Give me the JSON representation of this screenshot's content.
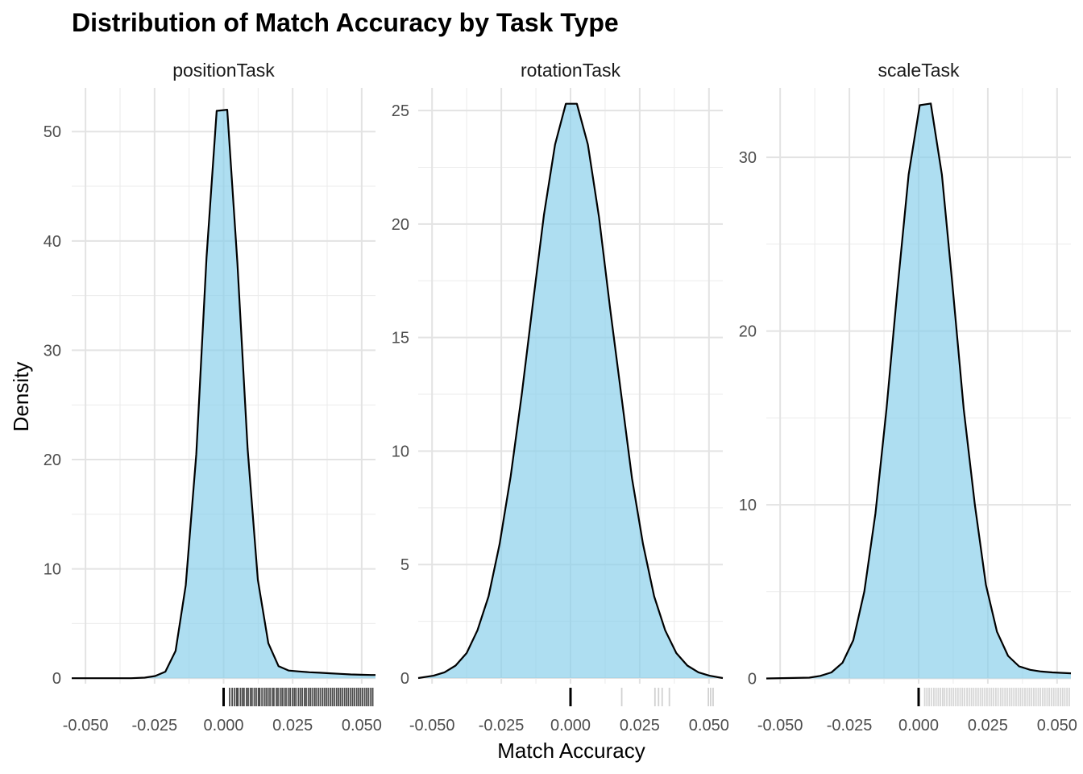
{
  "chart_data": {
    "type": "area",
    "title": "Distribution of Match Accuracy by Task Type",
    "xlabel": "Match Accuracy",
    "ylabel": "Density",
    "grid": true,
    "legend": "none",
    "fill_color": "#87ceeb",
    "line_color": "#000000",
    "x_ticks": [
      -0.05,
      -0.025,
      0.0,
      0.025,
      0.05
    ],
    "x_tick_labels": [
      "-0.050",
      "-0.025",
      "0.000",
      "0.025",
      "0.050"
    ],
    "xlim": [
      -0.055,
      0.055
    ],
    "panels": [
      {
        "name": "positionTask",
        "ylim": [
          -0.5,
          54
        ],
        "y_ticks": [
          0,
          10,
          20,
          30,
          40,
          50
        ],
        "x": [
          -0.055,
          -0.0335,
          -0.0286,
          -0.0248,
          -0.0211,
          -0.0174,
          -0.0137,
          -0.0099,
          -0.0062,
          -0.0025,
          0.0013,
          0.005,
          0.0087,
          0.0124,
          0.0162,
          0.0199,
          0.0236,
          0.0273,
          0.0311,
          0.0348,
          0.0385,
          0.0423,
          0.046,
          0.0497,
          0.0535,
          0.055
        ],
        "y": [
          0,
          0,
          0.05,
          0.2,
          0.6,
          2.5,
          8.5,
          20.5,
          38.5,
          51.9,
          52.0,
          38.0,
          21.0,
          9.0,
          3.2,
          1.1,
          0.7,
          0.62,
          0.55,
          0.5,
          0.45,
          0.4,
          0.35,
          0.32,
          0.3,
          0.3
        ],
        "rug_color": "#000000",
        "rug": [
          0.0,
          0.0022,
          0.0031,
          0.0039,
          0.0047,
          0.0052,
          0.0061,
          0.0068,
          0.0074,
          0.0083,
          0.0089,
          0.0097,
          0.0103,
          0.0111,
          0.0118,
          0.0126,
          0.0131,
          0.0139,
          0.0147,
          0.0154,
          0.0161,
          0.0168,
          0.0176,
          0.0182,
          0.0191,
          0.0197,
          0.0205,
          0.0212,
          0.0219,
          0.0226,
          0.0234,
          0.0241,
          0.0249,
          0.0256,
          0.0262,
          0.0271,
          0.0278,
          0.0285,
          0.0293,
          0.0299,
          0.0307,
          0.0314,
          0.0321,
          0.0329,
          0.0335,
          0.0343,
          0.035,
          0.0358,
          0.0365,
          0.0372,
          0.0379,
          0.0387,
          0.0394,
          0.0401,
          0.0409,
          0.0416,
          0.0423,
          0.043,
          0.0438,
          0.0445,
          0.0452,
          0.046,
          0.0467,
          0.0474,
          0.0482,
          0.0489,
          0.0496,
          0.0503,
          0.0511,
          0.0518,
          0.0525,
          0.0533,
          0.054
        ]
      },
      {
        "name": "rotationTask",
        "ylim": [
          -0.25,
          26
        ],
        "y_ticks": [
          0,
          5,
          10,
          15,
          20,
          25
        ],
        "x": [
          -0.055,
          -0.0495,
          -0.0455,
          -0.0415,
          -0.0375,
          -0.0336,
          -0.0296,
          -0.0256,
          -0.0216,
          -0.0176,
          -0.0136,
          -0.0096,
          -0.0056,
          -0.0017,
          0.0023,
          0.0063,
          0.0103,
          0.0143,
          0.0183,
          0.0222,
          0.0262,
          0.0302,
          0.0342,
          0.0382,
          0.0422,
          0.0462,
          0.0502,
          0.055
        ],
        "y": [
          0,
          0.1,
          0.25,
          0.55,
          1.1,
          2.1,
          3.6,
          5.9,
          8.9,
          12.5,
          16.5,
          20.4,
          23.5,
          25.3,
          25.3,
          23.5,
          20.3,
          16.3,
          12.5,
          8.8,
          5.9,
          3.6,
          2.1,
          1.1,
          0.55,
          0.25,
          0.1,
          0
        ],
        "rug_color": "#000000",
        "rug": [
          0.0,
          0.0185,
          0.0305,
          0.0318,
          0.0331,
          0.0357,
          0.0498,
          0.0506,
          0.0515
        ]
      },
      {
        "name": "scaleTask",
        "ylim": [
          -0.3,
          34
        ],
        "y_ticks": [
          0,
          10,
          20,
          30
        ],
        "x": [
          -0.055,
          -0.0395,
          -0.0355,
          -0.0315,
          -0.0275,
          -0.0236,
          -0.0196,
          -0.0156,
          -0.0116,
          -0.0076,
          -0.0036,
          0.0004,
          0.0044,
          0.0084,
          0.0123,
          0.0163,
          0.0203,
          0.0243,
          0.0283,
          0.0323,
          0.0363,
          0.0403,
          0.0443,
          0.0483,
          0.055
        ],
        "y": [
          0,
          0.05,
          0.15,
          0.35,
          0.9,
          2.2,
          5.0,
          9.5,
          15.5,
          22.5,
          29.0,
          33.0,
          33.1,
          29.0,
          22.5,
          15.5,
          10.0,
          5.4,
          2.7,
          1.3,
          0.7,
          0.5,
          0.4,
          0.35,
          0.3
        ],
        "rug_color": "#8c8c8c",
        "rug": [
          0.0,
          0.0022,
          0.003,
          0.0038,
          0.0046,
          0.0055,
          0.0063,
          0.0071,
          0.0079,
          0.0087,
          0.0094,
          0.0102,
          0.0111,
          0.0118,
          0.0126,
          0.0134,
          0.0142,
          0.015,
          0.0158,
          0.0166,
          0.0175,
          0.0183,
          0.0191,
          0.0199,
          0.0207,
          0.0215,
          0.0223,
          0.0231,
          0.0239,
          0.0247,
          0.0255,
          0.0263,
          0.0271,
          0.0279,
          0.0287,
          0.0296,
          0.0304,
          0.0312,
          0.032,
          0.0328,
          0.0336,
          0.0344,
          0.0352,
          0.036,
          0.0368,
          0.0376,
          0.0384,
          0.0392,
          0.04,
          0.0408,
          0.0416,
          0.0424,
          0.0432,
          0.044,
          0.0448,
          0.0456,
          0.0464,
          0.0472,
          0.048,
          0.0488,
          0.0496,
          0.0504,
          0.0512,
          0.052,
          0.0528,
          0.0536,
          0.0544
        ]
      }
    ]
  }
}
